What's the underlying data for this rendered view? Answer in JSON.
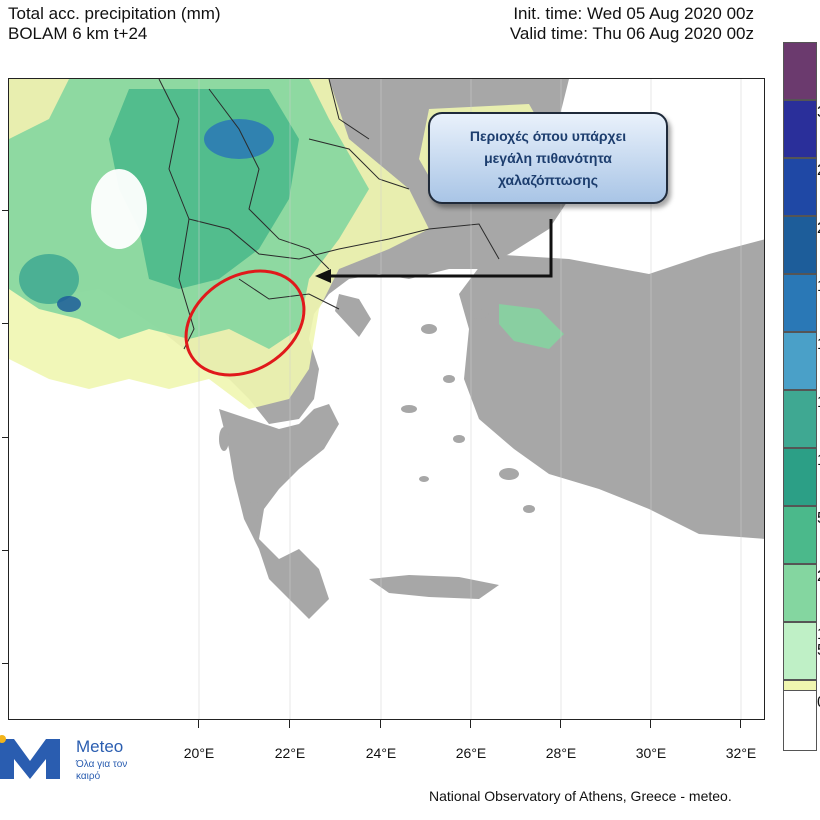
{
  "header": {
    "title_line1": "Total acc. precipitation (mm)",
    "title_line2": "BOLAM 6 km t+24",
    "init_time": "Init. time: Wed 05 Aug 2020 00z",
    "valid_time": "Valid time: Thu 06 Aug 2020 00z"
  },
  "map": {
    "longitude_labels": [
      "20°E",
      "22°E",
      "24°E",
      "26°E",
      "28°E",
      "30°E",
      "32°E"
    ],
    "colors": {
      "sea": "#ffffff",
      "land": "#a7a7a7",
      "border": "#2b2b2b",
      "highlight_ellipse": "#e0191b"
    }
  },
  "callout": {
    "text": "Περιοχές όπου υπάρχει μεγάλη πιθανότητα χαλαζόπτωσης"
  },
  "legend": {
    "visible_labels": [
      "3",
      "2",
      "2",
      "1",
      "1",
      "1",
      "1",
      "5",
      "2",
      "1",
      "5",
      "0"
    ],
    "colors": [
      "#6b3a6e",
      "#2a2f9a",
      "#1f48a5",
      "#1d5d9a",
      "#2a78b6",
      "#4aa0c8",
      "#3fa892",
      "#2c9f86",
      "#4bb98b",
      "#84d6a0",
      "#bff0c6",
      "#f0f6b0",
      "#ffffff"
    ]
  },
  "logo": {
    "brand": "Meteo",
    "tagline": "Όλα για τον καιρό",
    "color": "#2a5db0"
  },
  "footer": {
    "credit": "National Observatory of Athens, Greece - meteo."
  }
}
